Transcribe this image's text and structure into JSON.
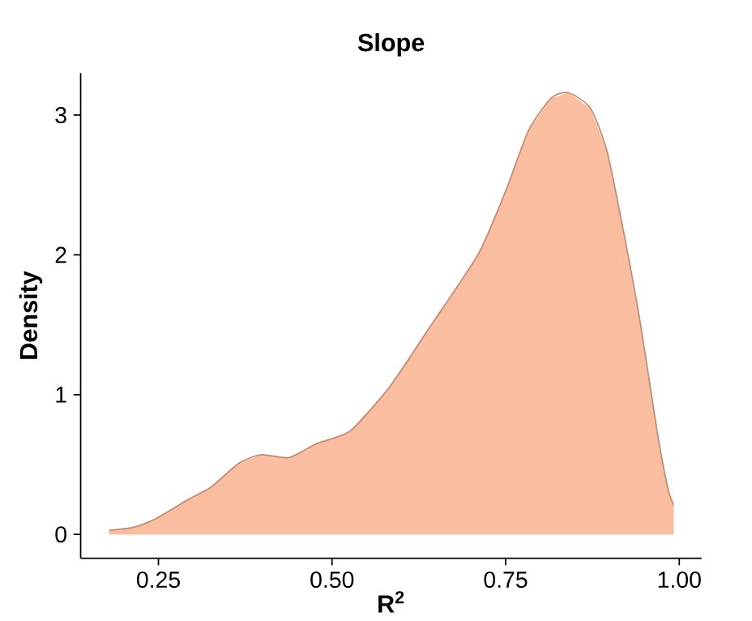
{
  "chart_data": {
    "type": "area",
    "title": "Slope",
    "xlabel": "R$^{2}$",
    "ylabel": "Density",
    "color": "#fbbda0",
    "x": [
      0.179,
      0.213,
      0.245,
      0.293,
      0.326,
      0.366,
      0.398,
      0.438,
      0.478,
      0.526,
      0.582,
      0.639,
      0.711,
      0.751,
      0.783,
      0.815,
      0.84,
      0.872,
      0.896,
      0.92,
      0.944,
      0.968,
      0.984,
      0.992
    ],
    "values": [
      0.03,
      0.05,
      0.11,
      0.25,
      0.34,
      0.51,
      0.57,
      0.55,
      0.65,
      0.74,
      1.05,
      1.47,
      2.01,
      2.47,
      2.89,
      3.12,
      3.16,
      3.05,
      2.74,
      2.16,
      1.51,
      0.74,
      0.32,
      0.21
    ],
    "xlim": [
      0.138,
      1.032
    ],
    "ylim": [
      -0.17,
      3.3
    ],
    "xticks": [
      {
        "value": 0.25,
        "label": "0.25"
      },
      {
        "value": 0.5,
        "label": "0.50"
      },
      {
        "value": 0.75,
        "label": "0.75"
      },
      {
        "value": 1.0,
        "label": "1.00"
      }
    ],
    "yticks": [
      0,
      1,
      2,
      3
    ],
    "grid": false
  }
}
